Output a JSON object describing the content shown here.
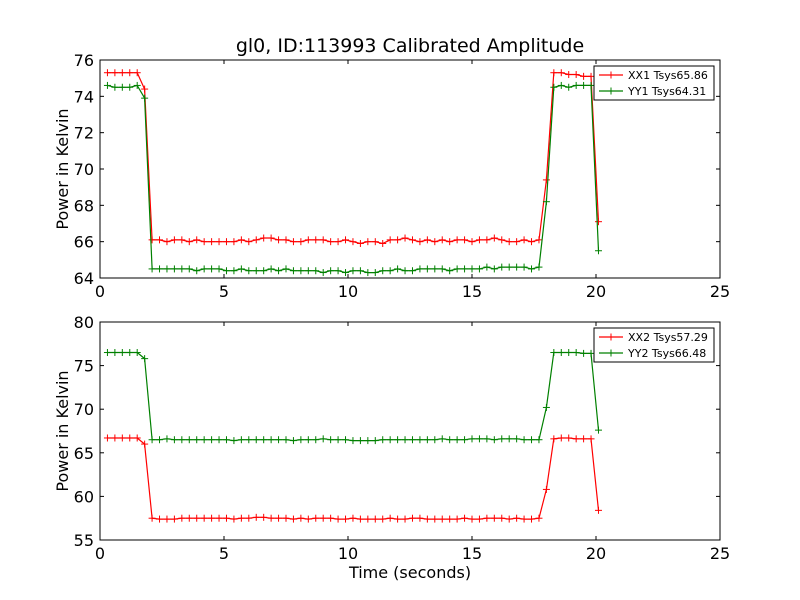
{
  "chart_data": [
    {
      "type": "line",
      "title": "gl0, ID:113993 Calibrated Amplitude",
      "xlabel": "",
      "ylabel": "Power in Kelvin",
      "xlim": [
        0,
        25
      ],
      "ylim": [
        64,
        76
      ],
      "xticks": [
        "0",
        "5",
        "10",
        "15",
        "20",
        "25"
      ],
      "yticks": [
        "64",
        "66",
        "68",
        "70",
        "72",
        "74",
        "76"
      ],
      "grid": false,
      "legend_position": "top-right",
      "series": [
        {
          "name": "XX1 Tsys65.86",
          "color": "#ff0000",
          "x": [
            0.3,
            0.6,
            0.9,
            1.2,
            1.5,
            1.8,
            2.1,
            2.4,
            2.7,
            3.0,
            3.3,
            3.6,
            3.9,
            4.2,
            4.5,
            4.8,
            5.1,
            5.4,
            5.7,
            6.0,
            6.3,
            6.6,
            6.9,
            7.2,
            7.5,
            7.8,
            8.1,
            8.4,
            8.7,
            9.0,
            9.3,
            9.6,
            9.9,
            10.2,
            10.5,
            10.8,
            11.1,
            11.4,
            11.7,
            12.0,
            12.3,
            12.6,
            12.9,
            13.2,
            13.5,
            13.8,
            14.1,
            14.4,
            14.7,
            15.0,
            15.3,
            15.6,
            15.9,
            16.2,
            16.5,
            16.8,
            17.1,
            17.4,
            17.7,
            18.0,
            18.3,
            18.6,
            18.9,
            19.2,
            19.5,
            19.8,
            20.1
          ],
          "values": [
            75.3,
            75.3,
            75.3,
            75.3,
            75.3,
            74.4,
            66.1,
            66.1,
            66.0,
            66.1,
            66.1,
            66.0,
            66.1,
            66.0,
            66.0,
            66.0,
            66.0,
            66.0,
            66.1,
            66.0,
            66.1,
            66.2,
            66.2,
            66.1,
            66.1,
            66.0,
            66.0,
            66.1,
            66.1,
            66.1,
            66.0,
            66.0,
            66.1,
            66.0,
            65.9,
            66.0,
            66.0,
            65.9,
            66.1,
            66.1,
            66.2,
            66.1,
            66.0,
            66.1,
            66.0,
            66.1,
            66.0,
            66.1,
            66.1,
            66.0,
            66.1,
            66.1,
            66.2,
            66.1,
            66.0,
            66.0,
            66.1,
            66.0,
            66.1,
            69.4,
            75.3,
            75.3,
            75.2,
            75.2,
            75.1,
            75.1,
            67.1
          ]
        },
        {
          "name": "YY1 Tsys64.31",
          "color": "#008000",
          "x": [
            0.3,
            0.6,
            0.9,
            1.2,
            1.5,
            1.8,
            2.1,
            2.4,
            2.7,
            3.0,
            3.3,
            3.6,
            3.9,
            4.2,
            4.5,
            4.8,
            5.1,
            5.4,
            5.7,
            6.0,
            6.3,
            6.6,
            6.9,
            7.2,
            7.5,
            7.8,
            8.1,
            8.4,
            8.7,
            9.0,
            9.3,
            9.6,
            9.9,
            10.2,
            10.5,
            10.8,
            11.1,
            11.4,
            11.7,
            12.0,
            12.3,
            12.6,
            12.9,
            13.2,
            13.5,
            13.8,
            14.1,
            14.4,
            14.7,
            15.0,
            15.3,
            15.6,
            15.9,
            16.2,
            16.5,
            16.8,
            17.1,
            17.4,
            17.7,
            18.0,
            18.3,
            18.6,
            18.9,
            19.2,
            19.5,
            19.8,
            20.1
          ],
          "values": [
            74.6,
            74.5,
            74.5,
            74.5,
            74.6,
            73.9,
            64.5,
            64.5,
            64.5,
            64.5,
            64.5,
            64.5,
            64.4,
            64.5,
            64.5,
            64.5,
            64.4,
            64.4,
            64.5,
            64.4,
            64.4,
            64.4,
            64.5,
            64.4,
            64.5,
            64.4,
            64.4,
            64.4,
            64.4,
            64.3,
            64.4,
            64.4,
            64.3,
            64.4,
            64.4,
            64.3,
            64.3,
            64.4,
            64.4,
            64.5,
            64.4,
            64.4,
            64.5,
            64.5,
            64.5,
            64.5,
            64.4,
            64.5,
            64.5,
            64.5,
            64.5,
            64.6,
            64.5,
            64.6,
            64.6,
            64.6,
            64.6,
            64.5,
            64.6,
            68.2,
            74.5,
            74.6,
            74.5,
            74.6,
            74.6,
            74.6,
            65.5
          ]
        }
      ]
    },
    {
      "type": "line",
      "title": "",
      "xlabel": "Time (seconds)",
      "ylabel": "Power in Kelvin",
      "xlim": [
        0,
        25
      ],
      "ylim": [
        55,
        80
      ],
      "xticks": [
        "0",
        "5",
        "10",
        "15",
        "20",
        "25"
      ],
      "yticks": [
        "55",
        "60",
        "65",
        "70",
        "75",
        "80"
      ],
      "grid": false,
      "legend_position": "top-right",
      "series": [
        {
          "name": "XX2 Tsys57.29",
          "color": "#ff0000",
          "x": [
            0.3,
            0.6,
            0.9,
            1.2,
            1.5,
            1.8,
            2.1,
            2.4,
            2.7,
            3.0,
            3.3,
            3.6,
            3.9,
            4.2,
            4.5,
            4.8,
            5.1,
            5.4,
            5.7,
            6.0,
            6.3,
            6.6,
            6.9,
            7.2,
            7.5,
            7.8,
            8.1,
            8.4,
            8.7,
            9.0,
            9.3,
            9.6,
            9.9,
            10.2,
            10.5,
            10.8,
            11.1,
            11.4,
            11.7,
            12.0,
            12.3,
            12.6,
            12.9,
            13.2,
            13.5,
            13.8,
            14.1,
            14.4,
            14.7,
            15.0,
            15.3,
            15.6,
            15.9,
            16.2,
            16.5,
            16.8,
            17.1,
            17.4,
            17.7,
            18.0,
            18.3,
            18.6,
            18.9,
            19.2,
            19.5,
            19.8,
            20.1
          ],
          "values": [
            66.7,
            66.7,
            66.7,
            66.7,
            66.7,
            66.0,
            57.5,
            57.4,
            57.4,
            57.4,
            57.5,
            57.5,
            57.5,
            57.5,
            57.5,
            57.5,
            57.5,
            57.4,
            57.5,
            57.5,
            57.6,
            57.6,
            57.5,
            57.5,
            57.5,
            57.4,
            57.5,
            57.4,
            57.5,
            57.5,
            57.5,
            57.4,
            57.4,
            57.5,
            57.4,
            57.4,
            57.4,
            57.4,
            57.5,
            57.4,
            57.4,
            57.5,
            57.5,
            57.4,
            57.4,
            57.4,
            57.4,
            57.4,
            57.5,
            57.4,
            57.4,
            57.5,
            57.5,
            57.5,
            57.4,
            57.5,
            57.4,
            57.4,
            57.5,
            60.8,
            66.6,
            66.7,
            66.7,
            66.6,
            66.6,
            66.6,
            58.4
          ]
        },
        {
          "name": "YY2 Tsys66.48",
          "color": "#008000",
          "x": [
            0.3,
            0.6,
            0.9,
            1.2,
            1.5,
            1.8,
            2.1,
            2.4,
            2.7,
            3.0,
            3.3,
            3.6,
            3.9,
            4.2,
            4.5,
            4.8,
            5.1,
            5.4,
            5.7,
            6.0,
            6.3,
            6.6,
            6.9,
            7.2,
            7.5,
            7.8,
            8.1,
            8.4,
            8.7,
            9.0,
            9.3,
            9.6,
            9.9,
            10.2,
            10.5,
            10.8,
            11.1,
            11.4,
            11.7,
            12.0,
            12.3,
            12.6,
            12.9,
            13.2,
            13.5,
            13.8,
            14.1,
            14.4,
            14.7,
            15.0,
            15.3,
            15.6,
            15.9,
            16.2,
            16.5,
            16.8,
            17.1,
            17.4,
            17.7,
            18.0,
            18.3,
            18.6,
            18.9,
            19.2,
            19.5,
            19.8,
            20.1
          ],
          "values": [
            76.5,
            76.5,
            76.5,
            76.5,
            76.5,
            75.8,
            66.5,
            66.5,
            66.6,
            66.5,
            66.5,
            66.5,
            66.5,
            66.5,
            66.5,
            66.5,
            66.5,
            66.4,
            66.5,
            66.5,
            66.5,
            66.5,
            66.5,
            66.5,
            66.5,
            66.4,
            66.5,
            66.5,
            66.5,
            66.6,
            66.5,
            66.5,
            66.5,
            66.4,
            66.4,
            66.4,
            66.4,
            66.5,
            66.5,
            66.5,
            66.5,
            66.5,
            66.5,
            66.5,
            66.5,
            66.6,
            66.5,
            66.5,
            66.5,
            66.6,
            66.6,
            66.6,
            66.5,
            66.6,
            66.6,
            66.6,
            66.5,
            66.5,
            66.5,
            70.2,
            76.5,
            76.5,
            76.5,
            76.5,
            76.4,
            76.4,
            67.6
          ]
        }
      ]
    }
  ]
}
